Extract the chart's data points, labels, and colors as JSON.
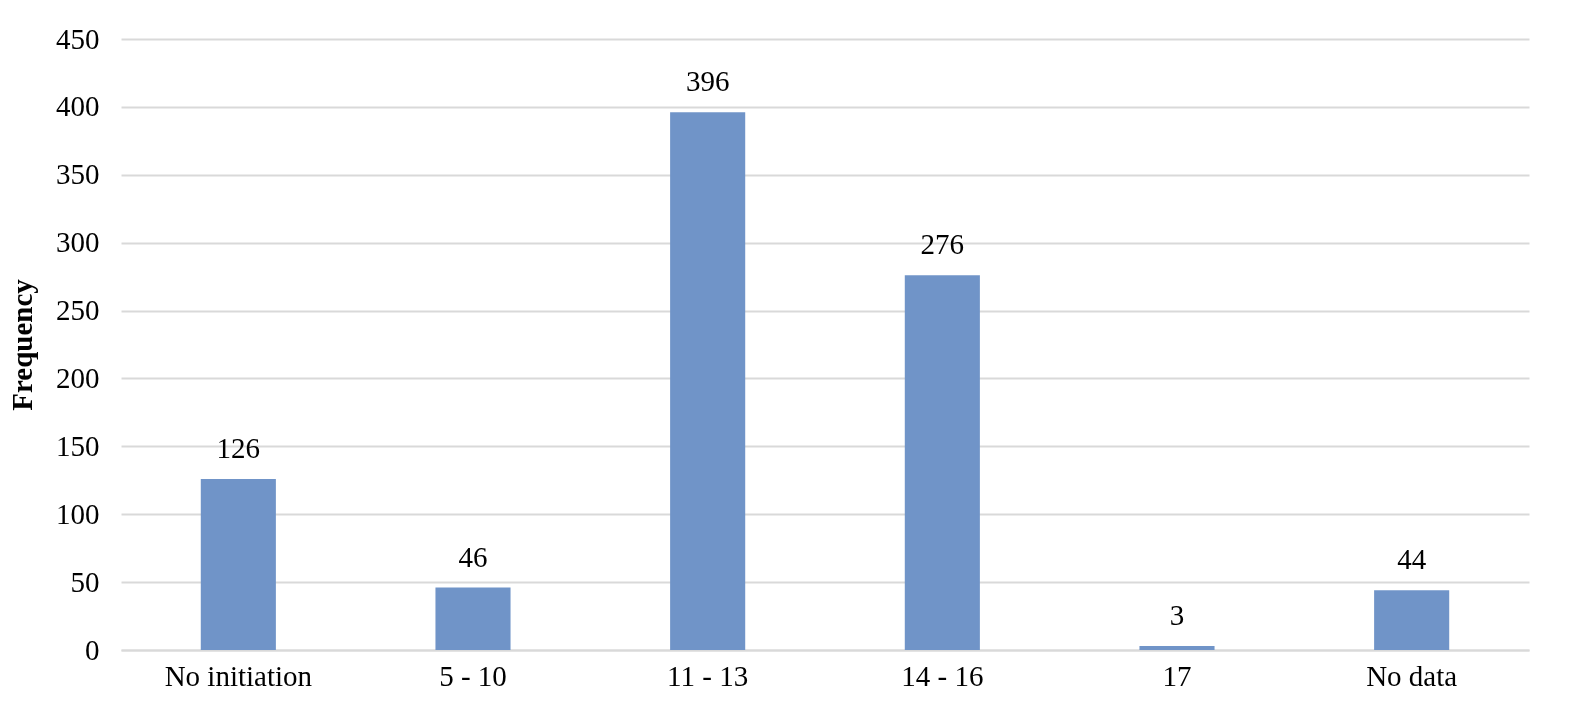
{
  "chart_data": {
    "type": "bar",
    "ylabel": "Frequency",
    "categories": [
      "No initiation",
      "5 - 10",
      "11 - 13",
      "14 - 16",
      "17",
      "No data"
    ],
    "values": [
      126,
      46,
      396,
      276,
      3,
      44
    ],
    "color": "#7094c8",
    "ylim": [
      0,
      450
    ],
    "yticks": [
      0,
      50,
      100,
      150,
      200,
      250,
      300,
      350,
      400,
      450
    ],
    "grid": "y",
    "data_labels": true
  }
}
